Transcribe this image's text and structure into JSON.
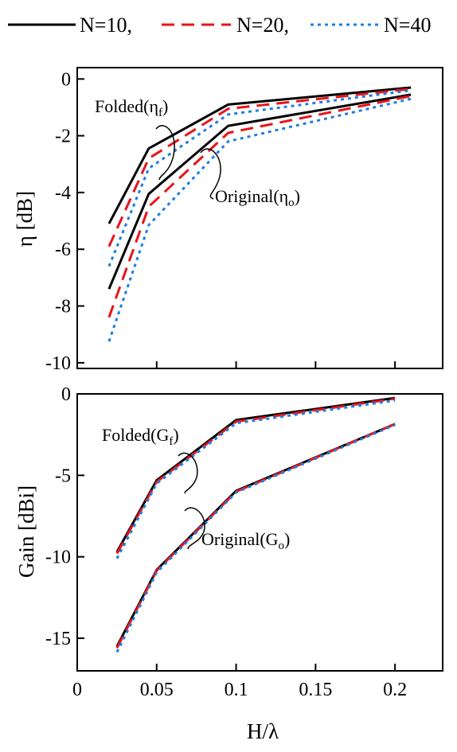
{
  "chart_data": [
    {
      "type": "line",
      "ylabel": "η [dB]",
      "xlim": [
        0,
        0.23
      ],
      "ylim": [
        -10.2,
        0.4
      ],
      "yticks": [
        0,
        -2,
        -4,
        -6,
        -8,
        -10
      ],
      "ytick_labels": [
        "0",
        "-2",
        "-4",
        "-6",
        "-8",
        "-10"
      ],
      "xticks": [
        0,
        0.05,
        0.1,
        0.15,
        0.2
      ],
      "grid": false,
      "annotations": [
        {
          "text": "Folded(η",
          "sub": "f",
          "close": ")"
        },
        {
          "text": "Original(η",
          "sub": "o",
          "close": ")"
        }
      ],
      "series": [
        {
          "name": "N=10",
          "group": "Folded",
          "x": [
            0.02,
            0.045,
            0.095,
            0.21
          ],
          "y": [
            -5.1,
            -2.45,
            -0.9,
            -0.3
          ]
        },
        {
          "name": "N=20",
          "group": "Folded",
          "x": [
            0.02,
            0.045,
            0.095,
            0.21
          ],
          "y": [
            -5.9,
            -2.8,
            -1.05,
            -0.35
          ]
        },
        {
          "name": "N=40",
          "group": "Folded",
          "x": [
            0.02,
            0.045,
            0.095,
            0.21
          ],
          "y": [
            -6.6,
            -3.15,
            -1.25,
            -0.4
          ]
        },
        {
          "name": "N=10",
          "group": "Original",
          "x": [
            0.02,
            0.045,
            0.095,
            0.21
          ],
          "y": [
            -7.4,
            -4.05,
            -1.65,
            -0.55
          ]
        },
        {
          "name": "N=20",
          "group": "Original",
          "x": [
            0.02,
            0.045,
            0.095,
            0.21
          ],
          "y": [
            -8.4,
            -4.5,
            -1.9,
            -0.6
          ]
        },
        {
          "name": "N=40",
          "group": "Original",
          "x": [
            0.02,
            0.045,
            0.095,
            0.21
          ],
          "y": [
            -9.25,
            -5.15,
            -2.2,
            -0.7
          ]
        }
      ]
    },
    {
      "type": "line",
      "ylabel": "Gain [dBi]",
      "xlabel": "H/λ",
      "xlim": [
        0,
        0.23
      ],
      "ylim": [
        -17,
        0
      ],
      "yticks": [
        0,
        -5,
        -10,
        -15
      ],
      "ytick_labels": [
        "0",
        "-5",
        "-10",
        "-15"
      ],
      "xticks": [
        0,
        0.05,
        0.1,
        0.15,
        0.2
      ],
      "xtick_labels": [
        "0",
        "0.05",
        "0.1",
        "0.15",
        "0.2"
      ],
      "grid": false,
      "annotations": [
        {
          "text": "Folded(G",
          "sub": "f",
          "close": ")"
        },
        {
          "text": "Original(G",
          "sub": "o",
          "close": ")"
        }
      ],
      "series": [
        {
          "name": "N=10",
          "group": "Folded",
          "x": [
            0.025,
            0.05,
            0.1,
            0.2
          ],
          "y": [
            -9.7,
            -5.3,
            -1.6,
            -0.25
          ]
        },
        {
          "name": "N=20",
          "group": "Folded",
          "x": [
            0.025,
            0.05,
            0.1,
            0.2
          ],
          "y": [
            -9.8,
            -5.4,
            -1.7,
            -0.3
          ]
        },
        {
          "name": "N=40",
          "group": "Folded",
          "x": [
            0.025,
            0.05,
            0.1,
            0.2
          ],
          "y": [
            -10.1,
            -5.5,
            -1.8,
            -0.4
          ]
        },
        {
          "name": "N=10",
          "group": "Original",
          "x": [
            0.025,
            0.05,
            0.1,
            0.2
          ],
          "y": [
            -15.5,
            -10.8,
            -5.95,
            -1.85
          ]
        },
        {
          "name": "N=20",
          "group": "Original",
          "x": [
            0.025,
            0.05,
            0.1,
            0.2
          ],
          "y": [
            -15.6,
            -10.85,
            -6.0,
            -1.85
          ]
        },
        {
          "name": "N=40",
          "group": "Original",
          "x": [
            0.025,
            0.05,
            0.1,
            0.2
          ],
          "y": [
            -15.85,
            -10.95,
            -6.05,
            -1.9
          ]
        }
      ]
    }
  ],
  "legend": {
    "placement": "top-center",
    "entries": [
      {
        "label": "N=10,",
        "color": "#000000",
        "style": "solid"
      },
      {
        "label": "N=20,",
        "color": "#e8141b",
        "style": "dashed"
      },
      {
        "label": "N=40",
        "color": "#1f7fe0",
        "style": "dotted"
      }
    ]
  },
  "series_styles": {
    "N=10": {
      "color": "#000000",
      "style": "solid"
    },
    "N=20": {
      "color": "#e8141b",
      "style": "dashed"
    },
    "N=40": {
      "color": "#1f7fe0",
      "style": "dotted"
    }
  }
}
